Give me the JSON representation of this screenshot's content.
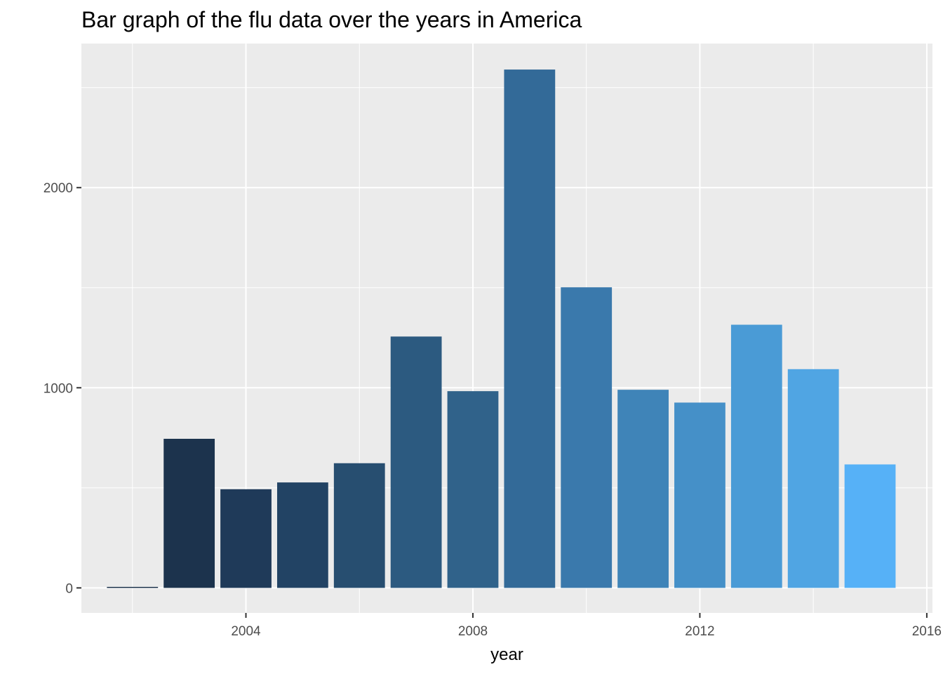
{
  "chart_data": {
    "type": "bar",
    "title": "Bar graph of the flu data over the years in America",
    "xlabel": "year",
    "ylabel": "",
    "x": [
      2002,
      2003,
      2004,
      2005,
      2006,
      2007,
      2008,
      2009,
      2010,
      2011,
      2012,
      2013,
      2014,
      2015
    ],
    "values": [
      5,
      745,
      493,
      527,
      623,
      1256,
      983,
      2590,
      1502,
      990,
      926,
      1315,
      1093,
      617
    ],
    "colors": [
      "#132B43",
      "#1C334D",
      "#1F3A59",
      "#224364",
      "#274E70",
      "#2C5A80",
      "#30628A",
      "#336A98",
      "#3A79AC",
      "#3F84B8",
      "#4590C8",
      "#4A9BD6",
      "#50A5E3",
      "#56B1F7"
    ],
    "xlim": [
      2001.1,
      2016.1
    ],
    "ylim": [
      -125,
      2720
    ],
    "x_ticks": [
      2004,
      2008,
      2012,
      2016
    ],
    "x_tick_labels": [
      "2004",
      "2008",
      "2012",
      "2016"
    ],
    "y_ticks": [
      0,
      1000,
      2000
    ],
    "y_tick_labels": [
      "0",
      "1000",
      "2000"
    ],
    "grid": true,
    "panel_background": "#EBEBEB",
    "legend": "none"
  }
}
